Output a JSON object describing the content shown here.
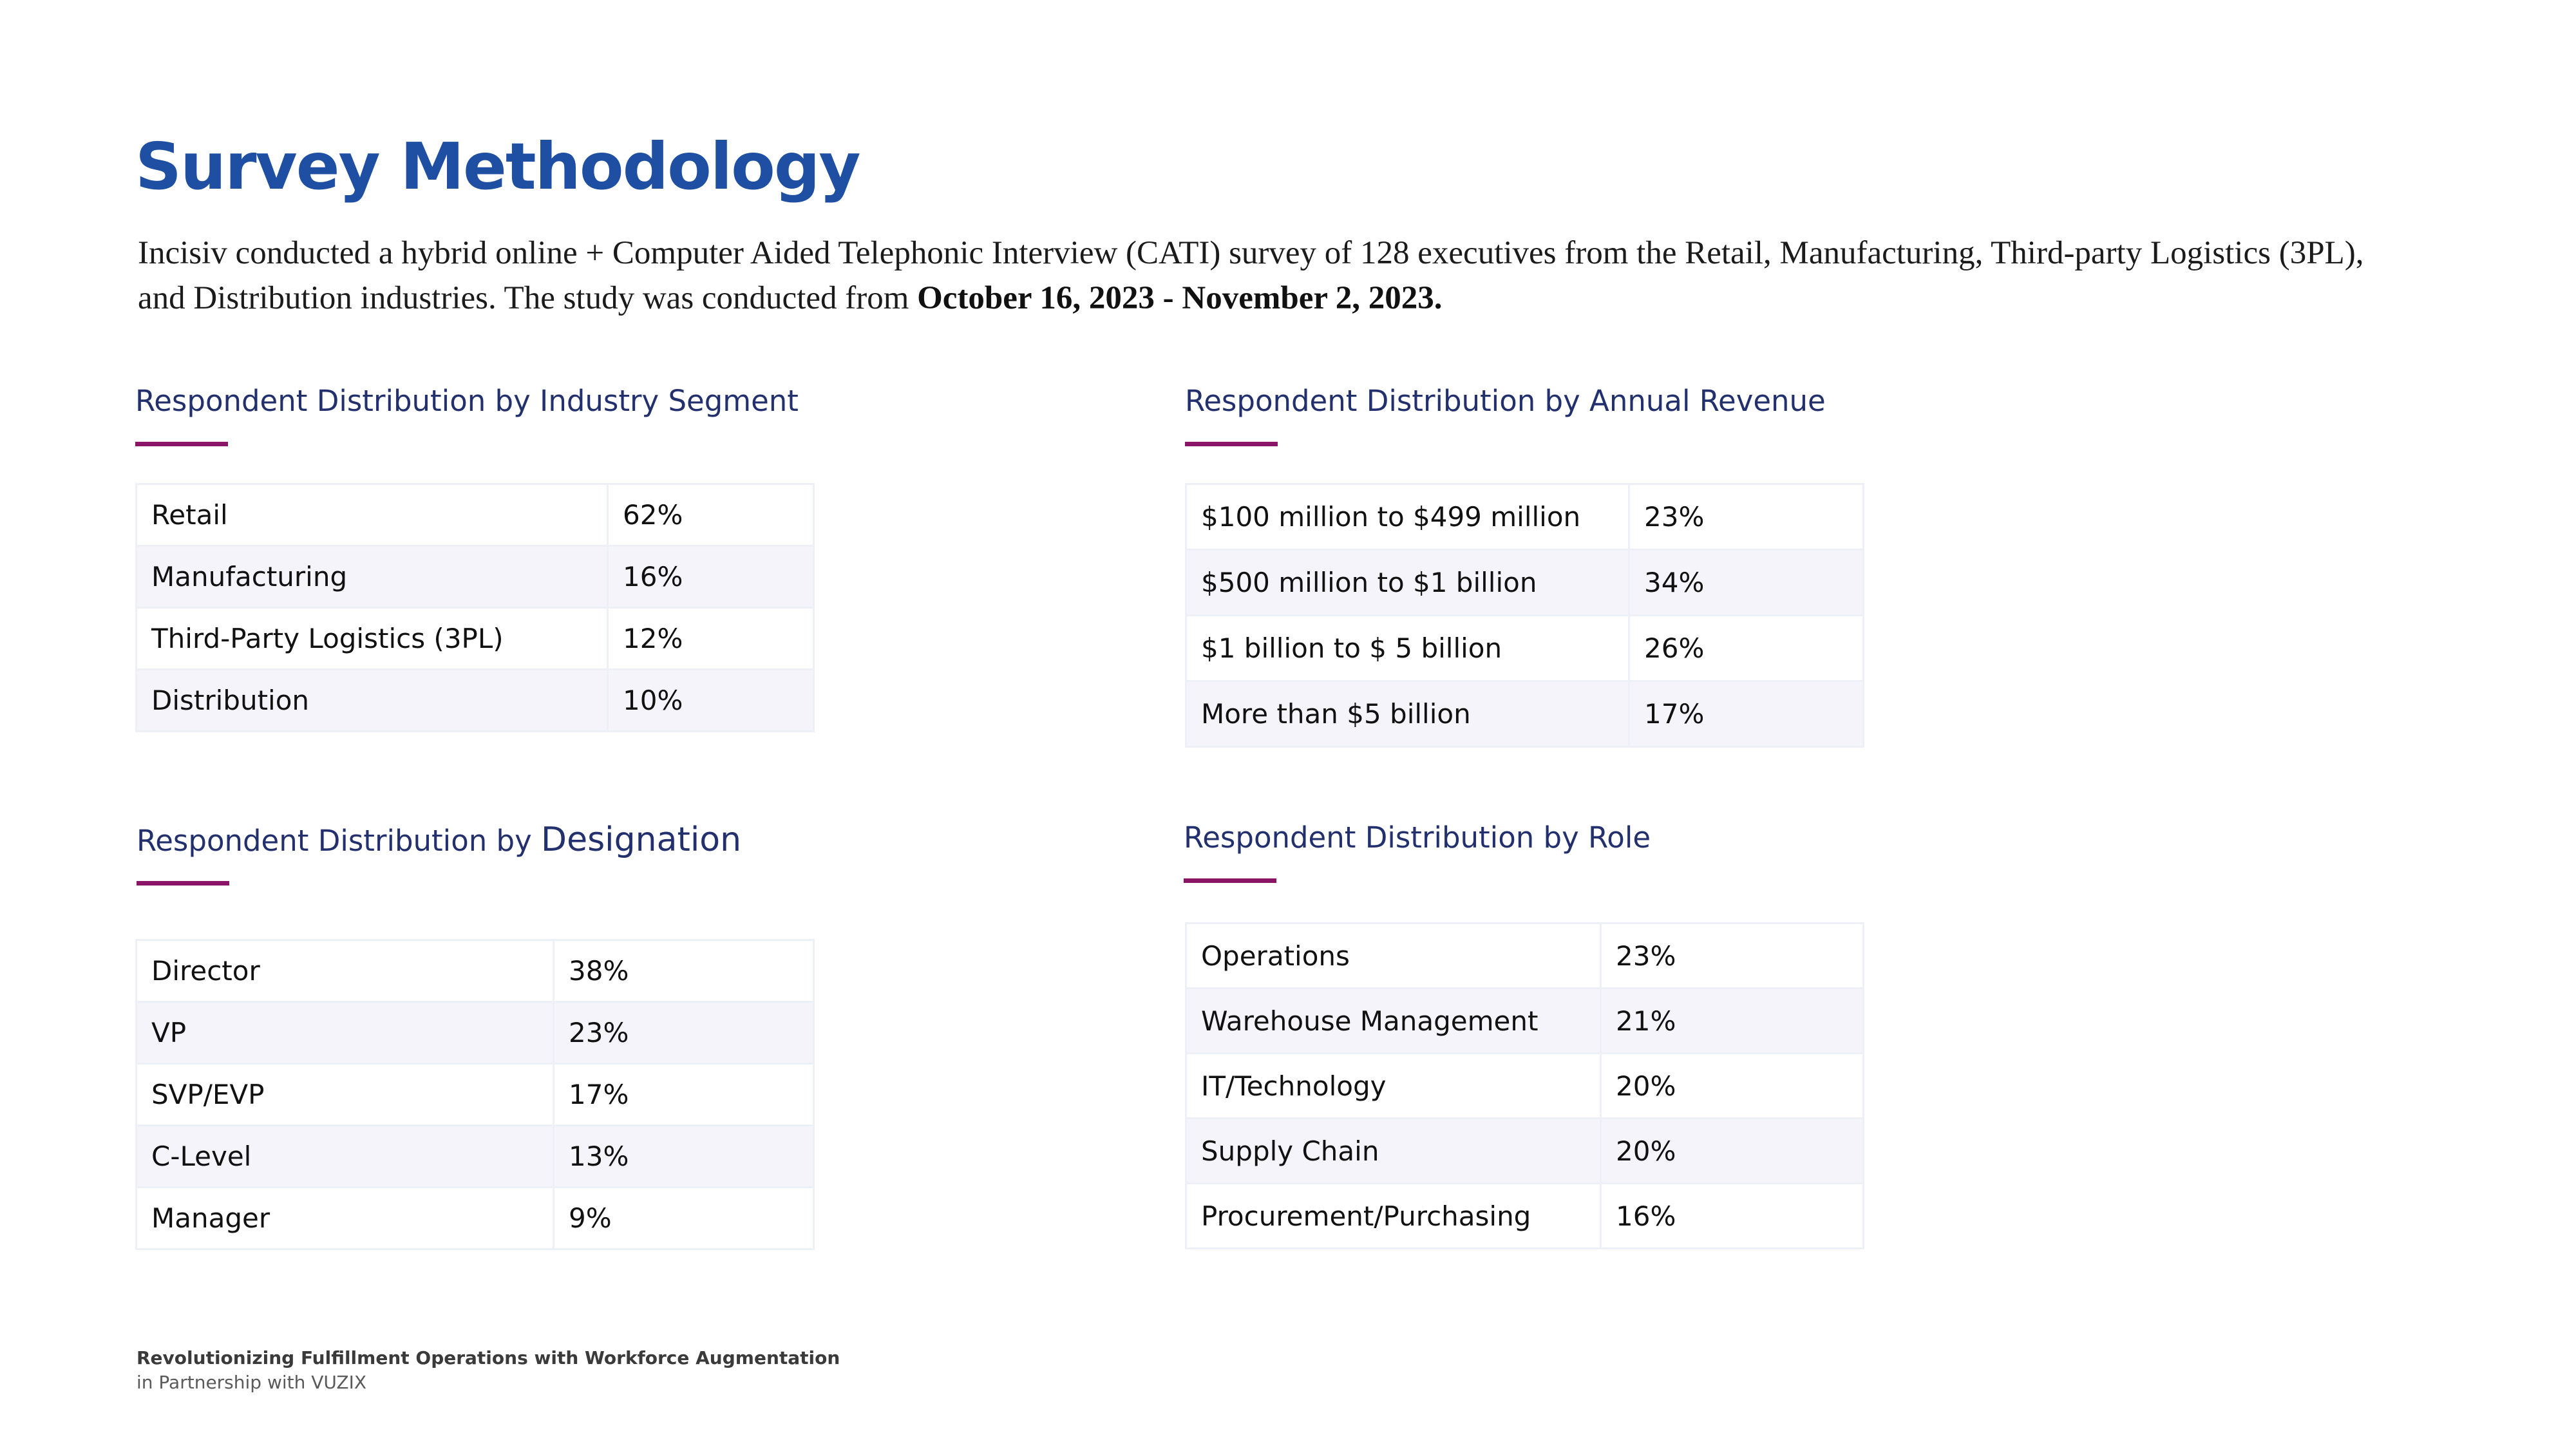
{
  "page": {
    "title": "Survey Methodology",
    "intro_text": "Incisiv conducted a hybrid online + Computer Aided Telephonic Interview (CATI) survey of 128 executives from the Retail, Manufacturing, Third-party Logistics (3PL), and Distribution industries. The study was conducted from ",
    "intro_dates": "October 16, 2023 - November 2, 2023."
  },
  "sections": {
    "industry": {
      "heading": "Respondent Distribution by Industry Segment",
      "rows": [
        {
          "label": "Retail",
          "value": "62%"
        },
        {
          "label": "Manufacturing",
          "value": "16%"
        },
        {
          "label": "Third-Party Logistics (3PL)",
          "value": "12%"
        },
        {
          "label": "Distribution",
          "value": "10%"
        }
      ]
    },
    "revenue": {
      "heading": "Respondent Distribution by Annual Revenue",
      "rows": [
        {
          "label": "$100 million to $499 million",
          "value": "23%"
        },
        {
          "label": "$500 million to $1 billion",
          "value": "34%"
        },
        {
          "label": "$1 billion to $ 5 billion",
          "value": "26%"
        },
        {
          "label": "More than $5 billion",
          "value": "17%"
        }
      ]
    },
    "designation": {
      "heading_prefix": "Respondent Distribution by ",
      "heading_emphasis": "Designation",
      "rows": [
        {
          "label": "Director",
          "value": "38%"
        },
        {
          "label": "VP",
          "value": "23%"
        },
        {
          "label": "SVP/EVP",
          "value": "17%"
        },
        {
          "label": "C-Level",
          "value": "13%"
        },
        {
          "label": "Manager",
          "value": "9%"
        }
      ]
    },
    "role": {
      "heading": "Respondent Distribution by Role",
      "rows": [
        {
          "label": "Operations",
          "value": "23%"
        },
        {
          "label": "Warehouse Management",
          "value": "21%"
        },
        {
          "label": "IT/Technology",
          "value": "20%"
        },
        {
          "label": "Supply Chain",
          "value": "20%"
        },
        {
          "label": "Procurement/Purchasing",
          "value": "16%"
        }
      ]
    }
  },
  "footer": {
    "title": "Revolutionizing Fulfillment Operations with Workforce Augmentation",
    "subtitle": "in Partnership with VUZIX"
  },
  "colors": {
    "title": "#1f4fa3",
    "heading": "#22306e",
    "accent": "#8a1466",
    "row_alt": "#f4f4fa"
  }
}
